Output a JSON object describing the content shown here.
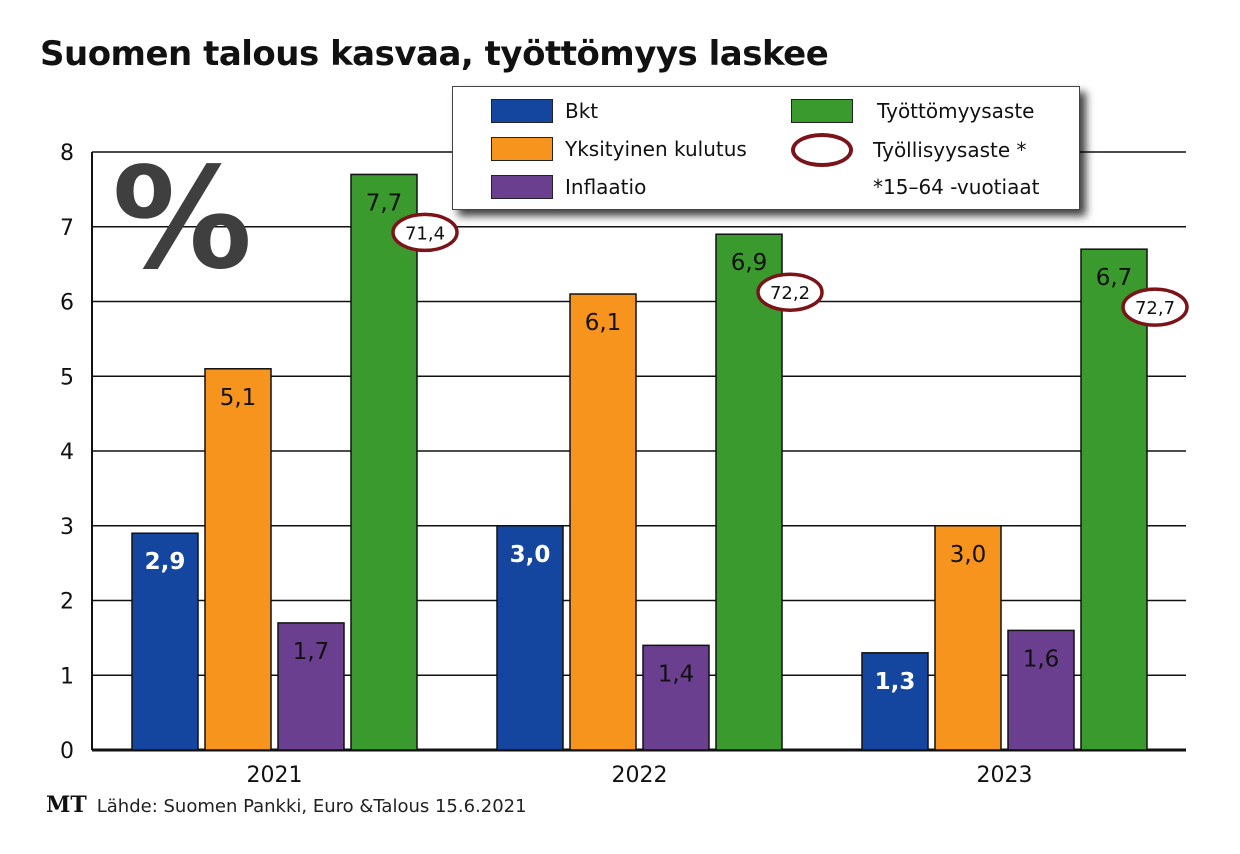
{
  "title": "Suomen talous kasvaa, työttömyys laskee",
  "unit_symbol": "%",
  "legend": {
    "items": [
      {
        "label": "Bkt",
        "color": "#1446a0"
      },
      {
        "label": "Yksityinen kulutus",
        "color": "#f7941d"
      },
      {
        "label": "Inflaatio",
        "color": "#6b3f8f"
      },
      {
        "label": "Työttömyysaste",
        "color": "#3a9a2e"
      },
      {
        "label": "Työllisyysaste *",
        "color": "#7a1418"
      }
    ],
    "note": "*15–64 -vuotiaat"
  },
  "footer": {
    "brand": "MT",
    "source": "Lähde: Suomen Pankki, Euro &Talous 15.6.2021"
  },
  "chart_data": {
    "type": "bar",
    "categories": [
      "2021",
      "2022",
      "2023"
    ],
    "ylim": [
      0,
      8
    ],
    "yticks": [
      "0",
      "1",
      "2",
      "3",
      "4",
      "5",
      "6",
      "7",
      "8"
    ],
    "grid": true,
    "legend_position": "top-right",
    "series": [
      {
        "name": "Bkt",
        "color": "#1446a0",
        "values": [
          2.9,
          3.0,
          1.3
        ],
        "labels": [
          "2,9",
          "3,0",
          "1,3"
        ]
      },
      {
        "name": "Yksityinen kulutus",
        "color": "#f7941d",
        "values": [
          5.1,
          6.1,
          3.0
        ],
        "labels": [
          "5,1",
          "6,1",
          "3,0"
        ]
      },
      {
        "name": "Inflaatio",
        "color": "#6b3f8f",
        "values": [
          1.7,
          1.4,
          1.6
        ],
        "labels": [
          "1,7",
          "1,4",
          "1,6"
        ]
      },
      {
        "name": "Työttömyysaste",
        "color": "#3a9a2e",
        "values": [
          7.7,
          6.9,
          6.7
        ],
        "labels": [
          "7,7",
          "6,9",
          "6,7"
        ]
      }
    ],
    "employment_rate": {
      "name": "Työllisyysaste *",
      "color": "#7a1418",
      "values": [
        71.4,
        72.2,
        72.7
      ],
      "labels": [
        "71,4",
        "72,2",
        "72,7"
      ]
    }
  }
}
